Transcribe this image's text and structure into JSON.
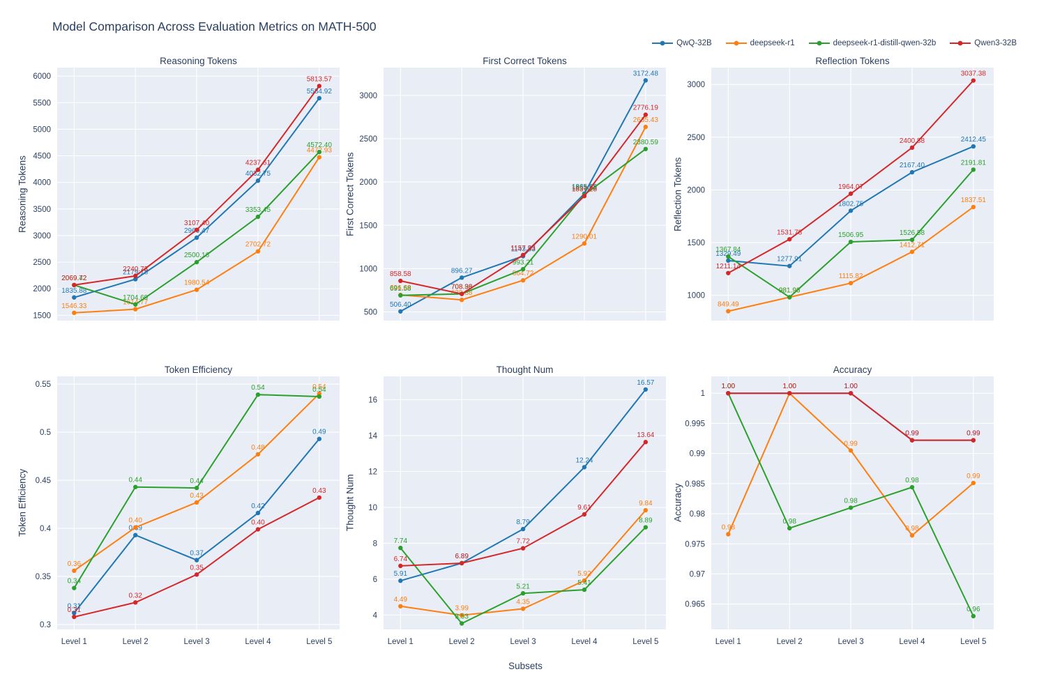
{
  "title": "Model Comparison Across Evaluation Metrics on MATH-500",
  "xlabel": "Subsets",
  "colors": {
    "QwQ-32B": "#1f77b4",
    "deepseek-r1": "#ff7f0e",
    "deepseek-r1-distill-qwen-32b": "#2ca02c",
    "Qwen3-32B": "#d62728",
    "plot_background": "#e8edf6",
    "grid": "#ffffff",
    "title_text": "#2a3f5f",
    "tick_text": "#2a3f5f"
  },
  "legend": {
    "items": [
      {
        "label": "QwQ-32B",
        "color": "#1f77b4"
      },
      {
        "label": "deepseek-r1",
        "color": "#ff7f0e"
      },
      {
        "label": "deepseek-r1-distill-qwen-32b",
        "color": "#2ca02c"
      },
      {
        "label": "Qwen3-32B",
        "color": "#d62728"
      }
    ]
  },
  "chart_data": {
    "type": "line",
    "categories": [
      "Level 1",
      "Level 2",
      "Level 3",
      "Level 4",
      "Level 5"
    ],
    "legend_position": "top-right",
    "grid": true,
    "panels": [
      {
        "key": "reasoning-tokens",
        "title": "Reasoning Tokens",
        "ylabel": "Reasoning Tokens",
        "ylim": [
          1400,
          6160
        ],
        "yticks": [
          1500,
          2000,
          2500,
          3000,
          3500,
          4000,
          4500,
          5000,
          5500,
          6000
        ],
        "ytick_labels": [
          "1500",
          "2000",
          "2500",
          "3000",
          "3500",
          "4000",
          "4500",
          "5000",
          "5500",
          "6000"
        ],
        "series": [
          {
            "name": "QwQ-32B",
            "values": [
              1835.88,
              2179.18,
              2960.47,
              4032.75,
              5584.92
            ]
          },
          {
            "name": "deepseek-r1",
            "values": [
              1546.33,
              1614.77,
              1980.54,
              2702.72,
              4472.93
            ]
          },
          {
            "name": "deepseek-r1-distill-qwen-32b",
            "values": [
              2069.42,
              1704.69,
              2500.16,
              3353.45,
              4572.4
            ]
          },
          {
            "name": "Qwen3-32B",
            "values": [
              2069.72,
              2240.73,
              3107.4,
              4237.61,
              5813.57
            ]
          }
        ]
      },
      {
        "key": "first-correct-tokens",
        "title": "First Correct Tokens",
        "ylabel": "First Correct Tokens",
        "ylim": [
          400,
          3320
        ],
        "yticks": [
          500,
          1000,
          1500,
          2000,
          2500,
          3000
        ],
        "ytick_labels": [
          "500",
          "1000",
          "1500",
          "2000",
          "2500",
          "3000"
        ],
        "series": [
          {
            "name": "QwQ-32B",
            "values": [
              506.4,
              896.27,
              1143.83,
              1865.65,
              3172.48
            ]
          },
          {
            "name": "deepseek-r1",
            "values": [
              696.68,
              639.38,
              864.72,
              1290.01,
              2635.43
            ]
          },
          {
            "name": "deepseek-r1-distill-qwen-32b",
            "values": [
              691.58,
              708.96,
              993.21,
              1853.23,
              2380.59
            ]
          },
          {
            "name": "Qwen3-32B",
            "values": [
              858.58,
              708.38,
              1157.33,
              1837.28,
              2776.19
            ]
          }
        ]
      },
      {
        "key": "reflection-tokens",
        "title": "Reflection Tokens",
        "ylabel": "Reflection Tokens",
        "ylim": [
          760,
          3160
        ],
        "yticks": [
          1000,
          1500,
          2000,
          2500,
          3000
        ],
        "ytick_labels": [
          "1000",
          "1500",
          "2000",
          "2500",
          "3000"
        ],
        "series": [
          {
            "name": "QwQ-32B",
            "values": [
              1329.49,
              1277.91,
              1802.75,
              2167.4,
              2412.45
            ]
          },
          {
            "name": "deepseek-r1",
            "values": [
              849.49,
              981.93,
              1115.82,
              1412.71,
              1837.51
            ]
          },
          {
            "name": "deepseek-r1-distill-qwen-32b",
            "values": [
              1367.84,
              981.96,
              1506.95,
              1526.58,
              2191.81
            ]
          },
          {
            "name": "Qwen3-32B",
            "values": [
              1211.14,
              1531.78,
              1964.07,
              2400.88,
              3037.38
            ]
          }
        ]
      },
      {
        "key": "token-efficiency",
        "title": "Token Efficiency",
        "ylabel": "Token Efficiency",
        "ylim": [
          0.295,
          0.558
        ],
        "yticks": [
          0.3,
          0.35,
          0.4,
          0.45,
          0.5,
          0.55
        ],
        "ytick_labels": [
          "0.3",
          "0.35",
          "0.4",
          "0.45",
          "0.5",
          "0.55"
        ],
        "series": [
          {
            "name": "QwQ-32B",
            "values": [
              0.312,
              0.393,
              0.367,
              0.416,
              0.493
            ],
            "labels": [
              "0.31",
              "0.39",
              "0.37",
              "0.42",
              "0.49"
            ]
          },
          {
            "name": "deepseek-r1",
            "values": [
              0.356,
              0.401,
              0.427,
              0.477,
              0.54
            ],
            "labels": [
              "0.36",
              "0.40",
              "0.43",
              "0.48",
              "0.54"
            ]
          },
          {
            "name": "deepseek-r1-distill-qwen-32b",
            "values": [
              0.338,
              0.443,
              0.442,
              0.539,
              0.537
            ],
            "labels": [
              "0.34",
              "0.44",
              "0.44",
              "0.54",
              "0.54"
            ]
          },
          {
            "name": "Qwen3-32B",
            "values": [
              0.308,
              0.323,
              0.352,
              0.399,
              0.432
            ],
            "labels": [
              "0.31",
              "0.32",
              "0.35",
              "0.40",
              "0.43"
            ]
          }
        ]
      },
      {
        "key": "thought-num",
        "title": "Thought Num",
        "ylabel": "Thought Num",
        "ylim": [
          3.2,
          17.3
        ],
        "yticks": [
          4,
          6,
          8,
          10,
          12,
          14,
          16
        ],
        "ytick_labels": [
          "4",
          "6",
          "8",
          "10",
          "12",
          "14",
          "16"
        ],
        "series": [
          {
            "name": "QwQ-32B",
            "values": [
              5.91,
              6.89,
              8.79,
              12.24,
              16.57
            ]
          },
          {
            "name": "deepseek-r1",
            "values": [
              4.49,
              3.99,
              4.35,
              5.92,
              9.84
            ]
          },
          {
            "name": "deepseek-r1-distill-qwen-32b",
            "values": [
              7.74,
              3.53,
              5.21,
              5.41,
              8.89
            ]
          },
          {
            "name": "Qwen3-32B",
            "values": [
              6.74,
              6.89,
              7.72,
              9.61,
              13.64
            ]
          }
        ]
      },
      {
        "key": "accuracy",
        "title": "Accuracy",
        "ylabel": "Accuracy",
        "ylim": [
          0.9608,
          1.0028
        ],
        "yticks": [
          0.965,
          0.97,
          0.975,
          0.98,
          0.985,
          0.99,
          0.995,
          1
        ],
        "ytick_labels": [
          "0.965",
          "0.97",
          "0.975",
          "0.98",
          "0.985",
          "0.99",
          "0.995",
          "1"
        ],
        "series": [
          {
            "name": "QwQ-32B",
            "values": [
              1.0,
              1.0,
              1.0,
              0.9922,
              0.9922
            ],
            "labels": [
              "1.00",
              "1.00",
              "1.00",
              "0.99",
              "0.99"
            ]
          },
          {
            "name": "deepseek-r1",
            "values": [
              0.9766,
              1.0,
              0.9905,
              0.9764,
              0.9851
            ],
            "labels": [
              "0.98",
              "1.00",
              "0.99",
              "0.98",
              "0.99"
            ]
          },
          {
            "name": "deepseek-r1-distill-qwen-32b",
            "values": [
              1.0,
              0.9776,
              0.981,
              0.9844,
              0.963
            ],
            "labels": [
              "1.00",
              "0.98",
              "0.98",
              "0.98",
              "0.96"
            ]
          },
          {
            "name": "Qwen3-32B",
            "values": [
              1.0,
              1.0,
              1.0,
              0.9922,
              0.9922
            ],
            "labels": [
              "1.00",
              "1.00",
              "1.00",
              "0.99",
              "0.99"
            ]
          }
        ]
      }
    ]
  }
}
